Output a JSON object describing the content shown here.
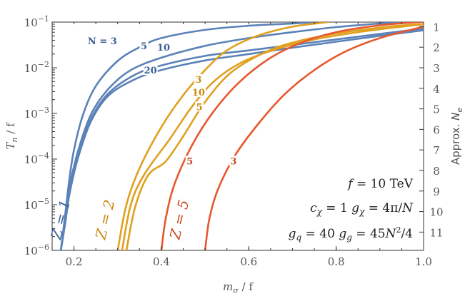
{
  "chart_data": {
    "type": "line",
    "title": "",
    "xlabel": "m_σ / f",
    "ylabel": "T_n / f",
    "y2label": "Approx. N_e",
    "xlim": [
      0.15,
      1.0
    ],
    "ylim_log10": [
      -6,
      -1
    ],
    "yscale": "log",
    "grid": false,
    "x_ticks": [
      {
        "v": 0.2,
        "label": "0.2"
      },
      {
        "v": 0.4,
        "label": "0.4"
      },
      {
        "v": 0.6,
        "label": "0.6"
      },
      {
        "v": 0.8,
        "label": "0.8"
      },
      {
        "v": 1.0,
        "label": "1.0"
      }
    ],
    "y_ticks": [
      {
        "e": -1,
        "base": "10",
        "exp": "−1"
      },
      {
        "e": -2,
        "base": "10",
        "exp": "−2"
      },
      {
        "e": -3,
        "base": "10",
        "exp": "−3"
      },
      {
        "e": -4,
        "base": "10",
        "exp": "−4"
      },
      {
        "e": -5,
        "base": "10",
        "exp": "−5"
      },
      {
        "e": -6,
        "base": "10",
        "exp": "−6"
      }
    ],
    "y2_ticks": [
      {
        "e": -1.1,
        "label": "1"
      },
      {
        "e": -1.55,
        "label": "2"
      },
      {
        "e": -2.0,
        "label": "3"
      },
      {
        "e": -2.45,
        "label": "4"
      },
      {
        "e": -2.9,
        "label": "5"
      },
      {
        "e": -3.35,
        "label": "6"
      },
      {
        "e": -3.8,
        "label": "7"
      },
      {
        "e": -4.25,
        "label": "8"
      },
      {
        "e": -4.7,
        "label": "9"
      },
      {
        "e": -5.15,
        "label": "10"
      },
      {
        "e": -5.6,
        "label": "11"
      }
    ],
    "colors": {
      "Z1": "#5b82b8",
      "Z2": "#e0a020",
      "Z5": "#e8582e",
      "Z1_text": "#3a5f96",
      "Z2_text": "#c98a10",
      "Z5_text": "#c94a24"
    },
    "series": [
      {
        "group": "Z1",
        "label": "N = 3",
        "points": [
          [
            0.17,
            -6
          ],
          [
            0.18,
            -5.2
          ],
          [
            0.19,
            -4.4
          ],
          [
            0.2,
            -3.8
          ],
          [
            0.22,
            -3.05
          ],
          [
            0.25,
            -2.4
          ],
          [
            0.3,
            -1.85
          ],
          [
            0.35,
            -1.55
          ],
          [
            0.4,
            -1.35
          ],
          [
            0.5,
            -1.17
          ],
          [
            0.6,
            -1.08
          ],
          [
            0.7,
            -1.03
          ],
          [
            0.75,
            -1.0
          ]
        ]
      },
      {
        "group": "Z1",
        "label": "5",
        "points": [
          [
            0.17,
            -6
          ],
          [
            0.18,
            -5.3
          ],
          [
            0.19,
            -4.6
          ],
          [
            0.21,
            -3.8
          ],
          [
            0.24,
            -3.0
          ],
          [
            0.28,
            -2.45
          ],
          [
            0.33,
            -2.05
          ],
          [
            0.4,
            -1.78
          ],
          [
            0.5,
            -1.52
          ],
          [
            0.6,
            -1.35
          ],
          [
            0.7,
            -1.22
          ],
          [
            0.8,
            -1.11
          ],
          [
            0.9,
            -1.03
          ],
          [
            0.95,
            -1.0
          ]
        ]
      },
      {
        "group": "Z1",
        "label": "10",
        "points": [
          [
            0.17,
            -6
          ],
          [
            0.18,
            -5.35
          ],
          [
            0.19,
            -4.7
          ],
          [
            0.21,
            -3.9
          ],
          [
            0.24,
            -3.1
          ],
          [
            0.28,
            -2.55
          ],
          [
            0.34,
            -2.15
          ],
          [
            0.4,
            -1.95
          ],
          [
            0.5,
            -1.74
          ],
          [
            0.6,
            -1.62
          ],
          [
            0.7,
            -1.5
          ],
          [
            0.8,
            -1.38
          ],
          [
            0.9,
            -1.26
          ],
          [
            1.0,
            -1.14
          ]
        ]
      },
      {
        "group": "Z1",
        "label": "20",
        "points": [
          [
            0.17,
            -6
          ],
          [
            0.18,
            -5.4
          ],
          [
            0.19,
            -4.75
          ],
          [
            0.21,
            -3.95
          ],
          [
            0.24,
            -3.15
          ],
          [
            0.28,
            -2.6
          ],
          [
            0.34,
            -2.25
          ],
          [
            0.4,
            -2.05
          ],
          [
            0.5,
            -1.84
          ],
          [
            0.6,
            -1.7
          ],
          [
            0.7,
            -1.56
          ],
          [
            0.8,
            -1.43
          ],
          [
            0.9,
            -1.3
          ],
          [
            1.0,
            -1.18
          ]
        ]
      },
      {
        "group": "Z2",
        "label": "3",
        "points": [
          [
            0.3,
            -6
          ],
          [
            0.32,
            -5.0
          ],
          [
            0.35,
            -4.2
          ],
          [
            0.4,
            -3.3
          ],
          [
            0.45,
            -2.6
          ],
          [
            0.5,
            -2.05
          ],
          [
            0.55,
            -1.62
          ],
          [
            0.62,
            -1.3
          ],
          [
            0.7,
            -1.1
          ],
          [
            0.78,
            -1.0
          ]
        ]
      },
      {
        "group": "Z2",
        "label": "10",
        "points": [
          [
            0.31,
            -6
          ],
          [
            0.33,
            -5.0
          ],
          [
            0.36,
            -4.35
          ],
          [
            0.42,
            -3.55
          ],
          [
            0.47,
            -2.85
          ],
          [
            0.52,
            -2.3
          ],
          [
            0.58,
            -1.9
          ],
          [
            0.66,
            -1.6
          ],
          [
            0.75,
            -1.38
          ],
          [
            0.85,
            -1.22
          ],
          [
            0.95,
            -1.1
          ],
          [
            1.0,
            -1.05
          ]
        ]
      },
      {
        "group": "Z2",
        "label": "5",
        "points": [
          [
            0.32,
            -6
          ],
          [
            0.34,
            -5.05
          ],
          [
            0.37,
            -4.35
          ],
          [
            0.41,
            -4.05
          ],
          [
            0.45,
            -3.5
          ],
          [
            0.5,
            -2.75
          ],
          [
            0.56,
            -2.1
          ],
          [
            0.64,
            -1.65
          ],
          [
            0.72,
            -1.4
          ],
          [
            0.82,
            -1.22
          ],
          [
            0.92,
            -1.1
          ],
          [
            1.0,
            -1.04
          ]
        ]
      },
      {
        "group": "Z5",
        "label": "5",
        "points": [
          [
            0.4,
            -6
          ],
          [
            0.41,
            -5.3
          ],
          [
            0.43,
            -4.55
          ],
          [
            0.47,
            -3.7
          ],
          [
            0.52,
            -2.95
          ],
          [
            0.58,
            -2.3
          ],
          [
            0.65,
            -1.78
          ],
          [
            0.72,
            -1.45
          ],
          [
            0.8,
            -1.22
          ],
          [
            0.9,
            -1.07
          ],
          [
            1.0,
            -0.99
          ]
        ]
      },
      {
        "group": "Z5",
        "label": "3",
        "points": [
          [
            0.5,
            -6
          ],
          [
            0.51,
            -5.3
          ],
          [
            0.53,
            -4.65
          ],
          [
            0.57,
            -3.9
          ],
          [
            0.62,
            -3.25
          ],
          [
            0.68,
            -2.6
          ],
          [
            0.75,
            -2.05
          ],
          [
            0.82,
            -1.65
          ],
          [
            0.9,
            -1.35
          ],
          [
            1.0,
            -1.1
          ]
        ]
      }
    ],
    "curve_labels": [
      {
        "group": "Z1",
        "text": "N = 3",
        "x": 0.265,
        "e": -1.44
      },
      {
        "group": "Z1",
        "text": "5",
        "x": 0.36,
        "e": -1.55
      },
      {
        "group": "Z1",
        "text": "10",
        "x": 0.405,
        "e": -1.58
      },
      {
        "group": "Z1",
        "text": "20",
        "x": 0.375,
        "e": -2.08
      },
      {
        "group": "Z2",
        "text": "3",
        "x": 0.485,
        "e": -2.28
      },
      {
        "group": "Z2",
        "text": "10",
        "x": 0.485,
        "e": -2.56
      },
      {
        "group": "Z2",
        "text": "5",
        "x": 0.487,
        "e": -2.88
      },
      {
        "group": "Z5",
        "text": "5",
        "x": 0.465,
        "e": -4.07
      },
      {
        "group": "Z5",
        "text": "3",
        "x": 0.565,
        "e": -4.07
      }
    ],
    "z_labels": [
      {
        "group": "Z1",
        "text": "Z = 1",
        "x": 0.18,
        "e": -5.35
      },
      {
        "group": "Z2",
        "text": "Z = 2",
        "x": 0.282,
        "e": -5.35
      },
      {
        "group": "Z5",
        "text": "Z = 5",
        "x": 0.452,
        "e": -5.35
      }
    ],
    "annotations": [
      {
        "text": "f = 10 TeV"
      },
      {
        "text": "c_χ = 1    g_χ = 4π/N"
      },
      {
        "text": "g_q = 40      g_g = 45N²/4"
      }
    ]
  }
}
